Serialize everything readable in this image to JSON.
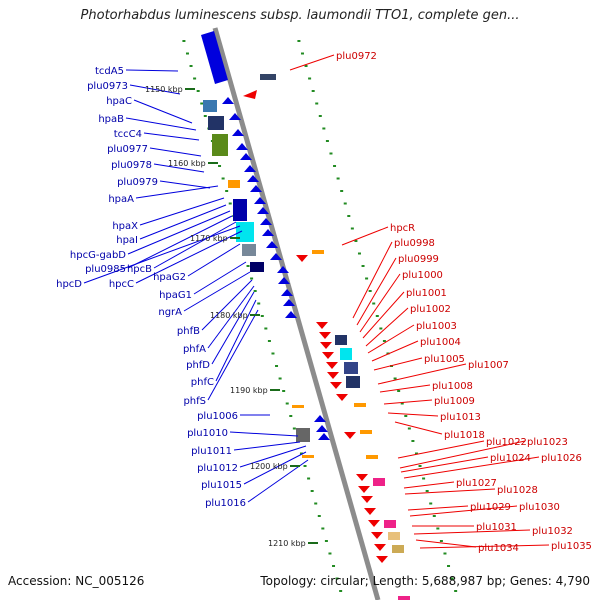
{
  "title": "Photorhabdus luminescens subsp. laumondii TTO1, complete gen...",
  "footer": {
    "accession": "Accession: NC_005126",
    "summary": "Topology: circular; Length: 5,688,987 bp; Genes: 4,790"
  },
  "colors": {
    "backbone": "#8c8c8c",
    "forward_strand": "#0000dd",
    "reverse_strand": "#ee0000",
    "left_labels": "#0000aa",
    "right_labels": "#cc0000",
    "tick_marks": "#228b22",
    "orange_feature": "#ff9900",
    "cyan_feature": "#00e5ee",
    "green_feature": "#5a8a1a",
    "pink_feature": "#ee2288"
  },
  "scale_labels": [
    "1150 kbp",
    "1160 kbp",
    "1170 kbp",
    "1180 kbp",
    "1190 kbp",
    "1200 kbp",
    "1210 kbp"
  ],
  "left_genes": [
    "tcdA5",
    "plu0973",
    "hpaC",
    "hpaB",
    "tccC4",
    "plu0977",
    "plu0978",
    "plu0979",
    "hpaA",
    "hpaX",
    "hpaI",
    "hpcG-gabD",
    "plu0985",
    "hpcB",
    "hpcD",
    "hpcC",
    "hpaG2",
    "hpaG1",
    "ngrA",
    "phfB",
    "phfA",
    "phfD",
    "phfC",
    "phfS",
    "plu1006",
    "plu1010",
    "plu1011",
    "plu1012",
    "plu1015",
    "plu1016"
  ],
  "right_genes": [
    "plu0972",
    "hpcR",
    "plu0998",
    "plu0999",
    "plu1000",
    "plu1001",
    "plu1002",
    "plu1003",
    "plu1004",
    "plu1005",
    "plu1007",
    "plu1008",
    "plu1009",
    "plu1013",
    "plu1018",
    "plu1022",
    "plu1023",
    "plu1024",
    "plu1026",
    "plu1027",
    "plu1028",
    "plu1029",
    "plu1030",
    "plu1031",
    "plu1032",
    "plu1034",
    "plu1035"
  ]
}
